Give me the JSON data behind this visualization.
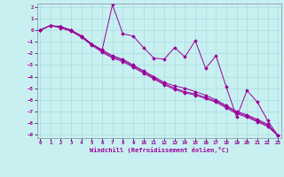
{
  "xlabel": "Windchill (Refroidissement éolien,°C)",
  "ylabel": "",
  "xlim": [
    0,
    23
  ],
  "ylim": [
    -9,
    2
  ],
  "yticks": [
    2,
    1,
    0,
    -1,
    -2,
    -3,
    -4,
    -5,
    -6,
    -7,
    -8,
    -9
  ],
  "xticks": [
    0,
    1,
    2,
    3,
    4,
    5,
    6,
    7,
    8,
    9,
    10,
    11,
    12,
    13,
    14,
    15,
    16,
    17,
    18,
    19,
    20,
    21,
    22,
    23
  ],
  "bg_color": "#c8f0f0",
  "line_color": "#990099",
  "line1_x": [
    0,
    1,
    2,
    3,
    4,
    5,
    6,
    7,
    8,
    9,
    10,
    11,
    12,
    13,
    14,
    15,
    16,
    17,
    18,
    19,
    20,
    21,
    22,
    23
  ],
  "line1_y": [
    0,
    0.4,
    0.3,
    0.0,
    -0.5,
    -1.2,
    -1.7,
    2.2,
    -0.3,
    -0.5,
    -1.5,
    -2.4,
    -2.5,
    -1.5,
    -2.3,
    -0.9,
    -3.3,
    -2.2,
    -4.9,
    -7.5,
    -5.2,
    -6.2,
    -7.8,
    -9.1
  ],
  "line2_x": [
    0,
    1,
    2,
    3,
    4,
    5,
    6,
    7,
    8,
    9,
    10,
    11,
    12,
    13,
    14,
    15,
    16,
    17,
    18,
    19,
    20,
    21,
    22,
    23
  ],
  "line2_y": [
    0,
    0.4,
    0.3,
    0.0,
    -0.5,
    -1.2,
    -1.7,
    -2.2,
    -2.5,
    -3.0,
    -3.5,
    -4.0,
    -4.5,
    -4.8,
    -5.0,
    -5.3,
    -5.6,
    -6.0,
    -6.5,
    -7.0,
    -7.3,
    -7.7,
    -8.1,
    -9.1
  ],
  "line3_x": [
    0,
    1,
    2,
    3,
    4,
    5,
    6,
    7,
    8,
    9,
    10,
    11,
    12,
    13,
    14,
    15,
    16,
    17,
    18,
    19,
    20,
    21,
    22,
    23
  ],
  "line3_y": [
    0,
    0.4,
    0.3,
    0.0,
    -0.5,
    -1.2,
    -1.8,
    -2.3,
    -2.6,
    -3.1,
    -3.6,
    -4.1,
    -4.6,
    -5.0,
    -5.3,
    -5.5,
    -5.8,
    -6.1,
    -6.6,
    -7.1,
    -7.4,
    -7.8,
    -8.2,
    -9.1
  ],
  "line4_x": [
    0,
    1,
    2,
    3,
    4,
    5,
    6,
    7,
    8,
    9,
    10,
    11,
    12,
    13,
    14,
    15,
    16,
    17,
    18,
    19,
    20,
    21,
    22,
    23
  ],
  "line4_y": [
    0,
    0.4,
    0.2,
    -0.1,
    -0.6,
    -1.3,
    -1.9,
    -2.4,
    -2.7,
    -3.2,
    -3.7,
    -4.2,
    -4.7,
    -5.1,
    -5.4,
    -5.6,
    -5.9,
    -6.2,
    -6.7,
    -7.2,
    -7.5,
    -7.9,
    -8.3,
    -9.1
  ]
}
